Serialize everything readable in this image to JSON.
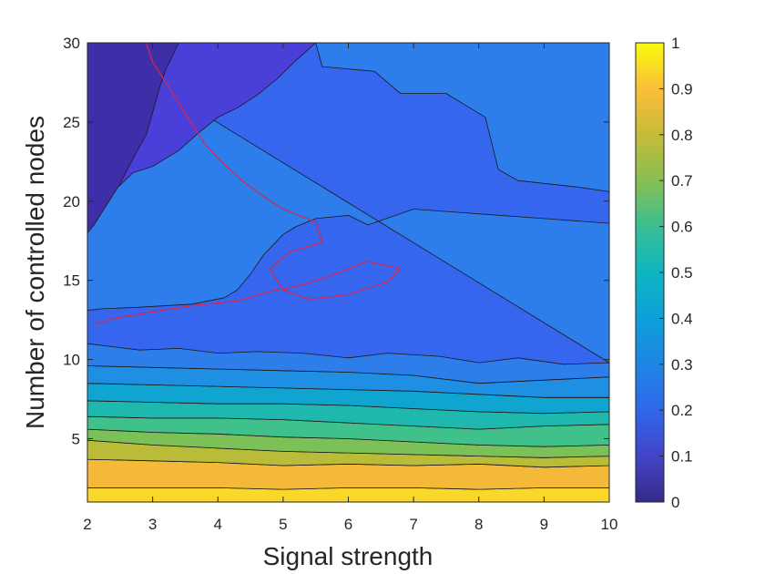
{
  "chart_data": {
    "type": "contour",
    "title": "",
    "xlabel": "Signal strength",
    "ylabel": "Number of controlled nodes",
    "xlim": [
      2,
      10
    ],
    "ylim": [
      1,
      30
    ],
    "x_ticks": [
      2,
      3,
      4,
      5,
      6,
      7,
      8,
      9,
      10
    ],
    "y_ticks": [
      5,
      10,
      15,
      20,
      25,
      30
    ],
    "colorbar": {
      "range": [
        0,
        1
      ],
      "ticks": [
        0,
        0.1,
        0.2,
        0.3,
        0.4,
        0.5,
        0.6,
        0.7,
        0.8,
        0.9,
        1
      ],
      "colormap": "parula"
    },
    "bands": [
      {
        "level": 0.95,
        "color": "#F9D82A",
        "boundary": [
          [
            2,
            1
          ],
          [
            10,
            1
          ],
          [
            10,
            1.9
          ],
          [
            9,
            1.9
          ],
          [
            8,
            1.8
          ],
          [
            7,
            1.9
          ],
          [
            6,
            1.9
          ],
          [
            5,
            1.8
          ],
          [
            4,
            1.9
          ],
          [
            3,
            1.9
          ],
          [
            2,
            1.9
          ]
        ]
      },
      {
        "level": 0.85,
        "color": "#F5B93A",
        "boundary": [
          [
            2,
            1.9
          ],
          [
            3,
            1.9
          ],
          [
            4,
            1.9
          ],
          [
            5,
            1.8
          ],
          [
            6,
            1.9
          ],
          [
            7,
            1.9
          ],
          [
            8,
            1.8
          ],
          [
            9,
            1.9
          ],
          [
            10,
            1.9
          ],
          [
            10,
            3.3
          ],
          [
            9,
            3.2
          ],
          [
            8,
            3.4
          ],
          [
            7,
            3.3
          ],
          [
            6,
            3.4
          ],
          [
            5,
            3.3
          ],
          [
            4,
            3.5
          ],
          [
            3,
            3.6
          ],
          [
            2,
            3.7
          ]
        ]
      },
      {
        "level": 0.75,
        "color": "#B8BC38",
        "boundary": [
          [
            2,
            3.7
          ],
          [
            3,
            3.6
          ],
          [
            4,
            3.5
          ],
          [
            5,
            3.3
          ],
          [
            6,
            3.4
          ],
          [
            7,
            3.3
          ],
          [
            8,
            3.4
          ],
          [
            9,
            3.2
          ],
          [
            10,
            3.3
          ],
          [
            10,
            3.9
          ],
          [
            9,
            3.8
          ],
          [
            8,
            3.9
          ],
          [
            7,
            4.0
          ],
          [
            6,
            4.1
          ],
          [
            5,
            4.2
          ],
          [
            4,
            4.4
          ],
          [
            3,
            4.6
          ],
          [
            2,
            4.9
          ]
        ]
      },
      {
        "level": 0.65,
        "color": "#7CC058",
        "boundary": [
          [
            2,
            4.9
          ],
          [
            3,
            4.6
          ],
          [
            4,
            4.4
          ],
          [
            5,
            4.2
          ],
          [
            6,
            4.1
          ],
          [
            7,
            4.0
          ],
          [
            8,
            3.9
          ],
          [
            9,
            3.8
          ],
          [
            10,
            3.9
          ],
          [
            10,
            4.6
          ],
          [
            9,
            4.5
          ],
          [
            8,
            4.6
          ],
          [
            7,
            4.8
          ],
          [
            6,
            5.0
          ],
          [
            5,
            5.1
          ],
          [
            4,
            5.3
          ],
          [
            3,
            5.4
          ],
          [
            2,
            5.6
          ]
        ]
      },
      {
        "level": 0.55,
        "color": "#40C08A",
        "boundary": [
          [
            2,
            5.6
          ],
          [
            3,
            5.4
          ],
          [
            4,
            5.3
          ],
          [
            5,
            5.1
          ],
          [
            6,
            5.0
          ],
          [
            7,
            4.8
          ],
          [
            8,
            4.6
          ],
          [
            9,
            4.5
          ],
          [
            10,
            4.6
          ],
          [
            10,
            5.9
          ],
          [
            9,
            5.8
          ],
          [
            8,
            5.6
          ],
          [
            7,
            5.8
          ],
          [
            6,
            6.0
          ],
          [
            5,
            6.2
          ],
          [
            4,
            6.3
          ],
          [
            3,
            6.3
          ],
          [
            2,
            6.4
          ]
        ]
      },
      {
        "level": 0.45,
        "color": "#1EB8AE",
        "boundary": [
          [
            2,
            6.4
          ],
          [
            3,
            6.3
          ],
          [
            4,
            6.3
          ],
          [
            5,
            6.2
          ],
          [
            6,
            6.0
          ],
          [
            7,
            5.8
          ],
          [
            8,
            5.6
          ],
          [
            9,
            5.8
          ],
          [
            10,
            5.9
          ],
          [
            10,
            6.7
          ],
          [
            9,
            6.6
          ],
          [
            8,
            6.7
          ],
          [
            7,
            6.9
          ],
          [
            6,
            7.1
          ],
          [
            5,
            7.2
          ],
          [
            4,
            7.2
          ],
          [
            3,
            7.3
          ],
          [
            2,
            7.4
          ]
        ]
      },
      {
        "level": 0.35,
        "color": "#0FA5D0",
        "boundary": [
          [
            2,
            7.4
          ],
          [
            3,
            7.3
          ],
          [
            4,
            7.2
          ],
          [
            5,
            7.2
          ],
          [
            6,
            7.1
          ],
          [
            7,
            6.9
          ],
          [
            8,
            6.7
          ],
          [
            9,
            6.6
          ],
          [
            10,
            6.7
          ],
          [
            10,
            7.6
          ],
          [
            9,
            7.6
          ],
          [
            8,
            7.8
          ],
          [
            7,
            8.0
          ],
          [
            6,
            8.1
          ],
          [
            5,
            8.2
          ],
          [
            4,
            8.3
          ],
          [
            3,
            8.4
          ],
          [
            2,
            8.5
          ]
        ]
      },
      {
        "level": 0.3,
        "color": "#1F8FE3",
        "boundary": [
          [
            2,
            8.5
          ],
          [
            3,
            8.4
          ],
          [
            4,
            8.3
          ],
          [
            5,
            8.2
          ],
          [
            6,
            8.1
          ],
          [
            7,
            8.0
          ],
          [
            8,
            7.8
          ],
          [
            9,
            7.6
          ],
          [
            10,
            7.6
          ],
          [
            10,
            8.9
          ],
          [
            9,
            8.7
          ],
          [
            8,
            8.5
          ],
          [
            7,
            9.0
          ],
          [
            6,
            9.2
          ],
          [
            5,
            9.3
          ],
          [
            4,
            9.4
          ],
          [
            3,
            9.5
          ],
          [
            2,
            9.6
          ]
        ]
      },
      {
        "level": 0.25,
        "color": "#2D7DEB",
        "boundary": [
          [
            2,
            30
          ],
          [
            10,
            30
          ],
          [
            10,
            8.9
          ],
          [
            9,
            8.7
          ],
          [
            8,
            8.5
          ],
          [
            7,
            9.0
          ],
          [
            6,
            9.2
          ],
          [
            5,
            9.3
          ],
          [
            4,
            9.4
          ],
          [
            3,
            9.5
          ],
          [
            2,
            9.6
          ]
        ]
      },
      {
        "level": 0.15,
        "color": "#3665EE",
        "boundary": [
          [
            2,
            30
          ],
          [
            5.5,
            30
          ],
          [
            5.6,
            28.5
          ],
          [
            6.4,
            28.2
          ],
          [
            6.8,
            26.8
          ],
          [
            7.5,
            26.8
          ],
          [
            8.1,
            25.3
          ],
          [
            8.3,
            22.0
          ],
          [
            8.6,
            21.3
          ],
          [
            9.5,
            20.9
          ],
          [
            10,
            20.6
          ],
          [
            10,
            18.6
          ],
          [
            9.0,
            18.9
          ],
          [
            8.0,
            19.2
          ],
          [
            7.0,
            19.5
          ],
          [
            6.3,
            18.5
          ],
          [
            6.0,
            19.1
          ],
          [
            5.5,
            18.9
          ],
          [
            5.2,
            18.4
          ],
          [
            5.0,
            17.9
          ],
          [
            4.7,
            16.6
          ],
          [
            4.5,
            15.4
          ],
          [
            4.3,
            14.4
          ],
          [
            4.1,
            13.9
          ],
          [
            3.6,
            13.5
          ],
          [
            2.8,
            13.3
          ],
          [
            2.2,
            13.2
          ],
          [
            2,
            13.1
          ],
          [
            2,
            11.0
          ],
          [
            2.8,
            10.6
          ],
          [
            3.4,
            10.7
          ],
          [
            4.0,
            10.4
          ],
          [
            4.6,
            10.5
          ],
          [
            5.3,
            10.4
          ],
          [
            6.0,
            10.1
          ],
          [
            6.6,
            10.4
          ],
          [
            7.4,
            10.2
          ],
          [
            8.0,
            9.8
          ],
          [
            8.6,
            10.1
          ],
          [
            9.3,
            9.7
          ],
          [
            10,
            9.8
          ]
        ]
      },
      {
        "level": 0.05,
        "color": "#4A3FD8",
        "boundary": [
          [
            2,
            30
          ],
          [
            5.5,
            30
          ],
          [
            5.2,
            28.9
          ],
          [
            4.9,
            27.7
          ],
          [
            4.6,
            26.7
          ],
          [
            4.3,
            25.9
          ],
          [
            4.0,
            25.3
          ],
          [
            3.7,
            24.3
          ],
          [
            3.4,
            23.2
          ],
          [
            3.0,
            22.2
          ],
          [
            2.7,
            21.8
          ],
          [
            2.5,
            21.0
          ],
          [
            2.2,
            20.3
          ],
          [
            2,
            19.8
          ]
        ]
      },
      {
        "level": 0.02,
        "color": "#3E2EA8",
        "boundary": [
          [
            2,
            30
          ],
          [
            3.4,
            30
          ],
          [
            3.2,
            28.3
          ],
          [
            3.1,
            27.1
          ],
          [
            3.0,
            25.6
          ],
          [
            2.9,
            24.2
          ],
          [
            2.7,
            22.7
          ],
          [
            2.5,
            21.1
          ],
          [
            2.3,
            19.8
          ],
          [
            2.1,
            18.5
          ],
          [
            2,
            18.0
          ]
        ]
      }
    ],
    "highlight_contour": {
      "color": "#D9264A",
      "points": [
        [
          2.1,
          12.2
        ],
        [
          2.4,
          12.6
        ],
        [
          3.0,
          13.0
        ],
        [
          3.6,
          13.4
        ],
        [
          4.3,
          13.7
        ],
        [
          4.8,
          14.3
        ],
        [
          5.3,
          14.7
        ],
        [
          5.8,
          15.4
        ],
        [
          6.3,
          16.2
        ],
        [
          6.8,
          15.7
        ],
        [
          6.6,
          14.9
        ],
        [
          6.0,
          14.1
        ],
        [
          5.4,
          13.8
        ],
        [
          5.0,
          14.4
        ],
        [
          4.8,
          15.7
        ],
        [
          5.1,
          16.8
        ],
        [
          5.6,
          17.4
        ],
        [
          5.5,
          18.7
        ],
        [
          5.0,
          19.5
        ],
        [
          4.7,
          20.3
        ],
        [
          4.4,
          21.2
        ],
        [
          4.1,
          22.3
        ],
        [
          3.8,
          23.6
        ],
        [
          3.6,
          24.9
        ],
        [
          3.4,
          26.2
        ],
        [
          3.2,
          27.5
        ],
        [
          3.0,
          28.8
        ],
        [
          2.9,
          30
        ]
      ]
    }
  }
}
